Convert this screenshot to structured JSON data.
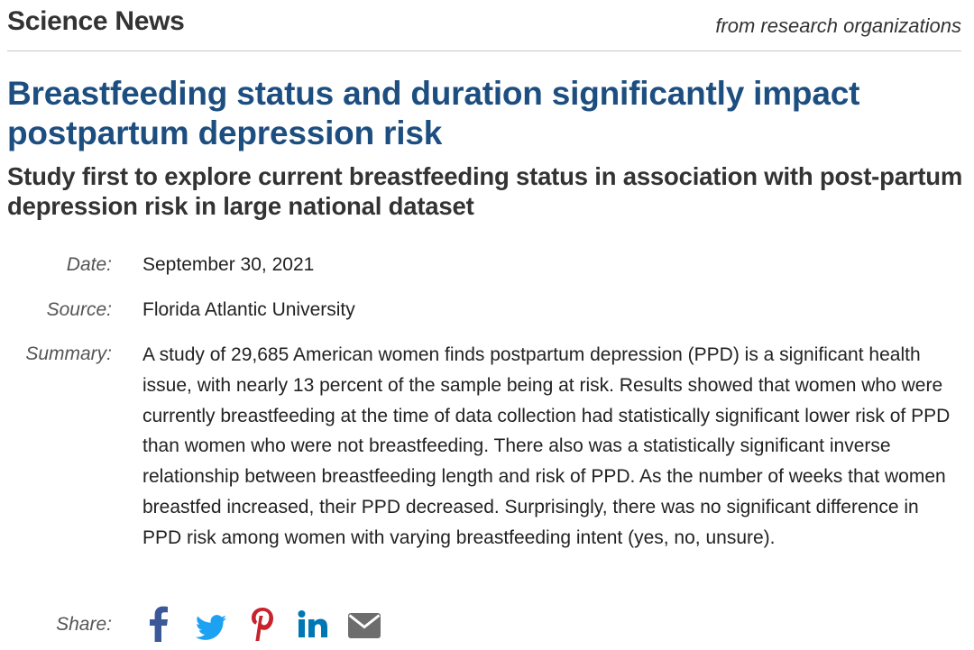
{
  "site": {
    "name": "Science News",
    "tagline": "from research organizations"
  },
  "article": {
    "headline": "Breastfeeding status and duration significantly impact postpartum depression risk",
    "subtitle": "Study first to explore current breastfeeding status in association with post-partum depression risk in large national dataset",
    "date_label": "Date:",
    "date": "September 30, 2021",
    "source_label": "Source:",
    "source": "Florida Atlantic University",
    "summary_label": "Summary:",
    "summary": "A study of 29,685 American women finds postpartum depression (PPD) is a significant health issue, with nearly 13 percent of the sample being at risk. Results showed that women who were currently breastfeeding at the time of data collection had statistically significant lower risk of PPD than women who were not breastfeeding. There also was a statistically significant inverse relationship between breastfeeding length and risk of PPD. As the number of weeks that women breastfed increased, their PPD decreased. Surprisingly, there was no significant difference in PPD risk among women with varying breastfeeding intent (yes, no, unsure).",
    "share_label": "Share:"
  },
  "share": {
    "icons": [
      "facebook-icon",
      "twitter-icon",
      "pinterest-icon",
      "linkedin-icon",
      "email-icon"
    ]
  },
  "colors": {
    "headline": "#1d4e80",
    "facebook": "#3b5998",
    "twitter": "#1da1f2",
    "pinterest": "#c8232c",
    "linkedin": "#0077b5",
    "email": "#6d6d6d"
  }
}
